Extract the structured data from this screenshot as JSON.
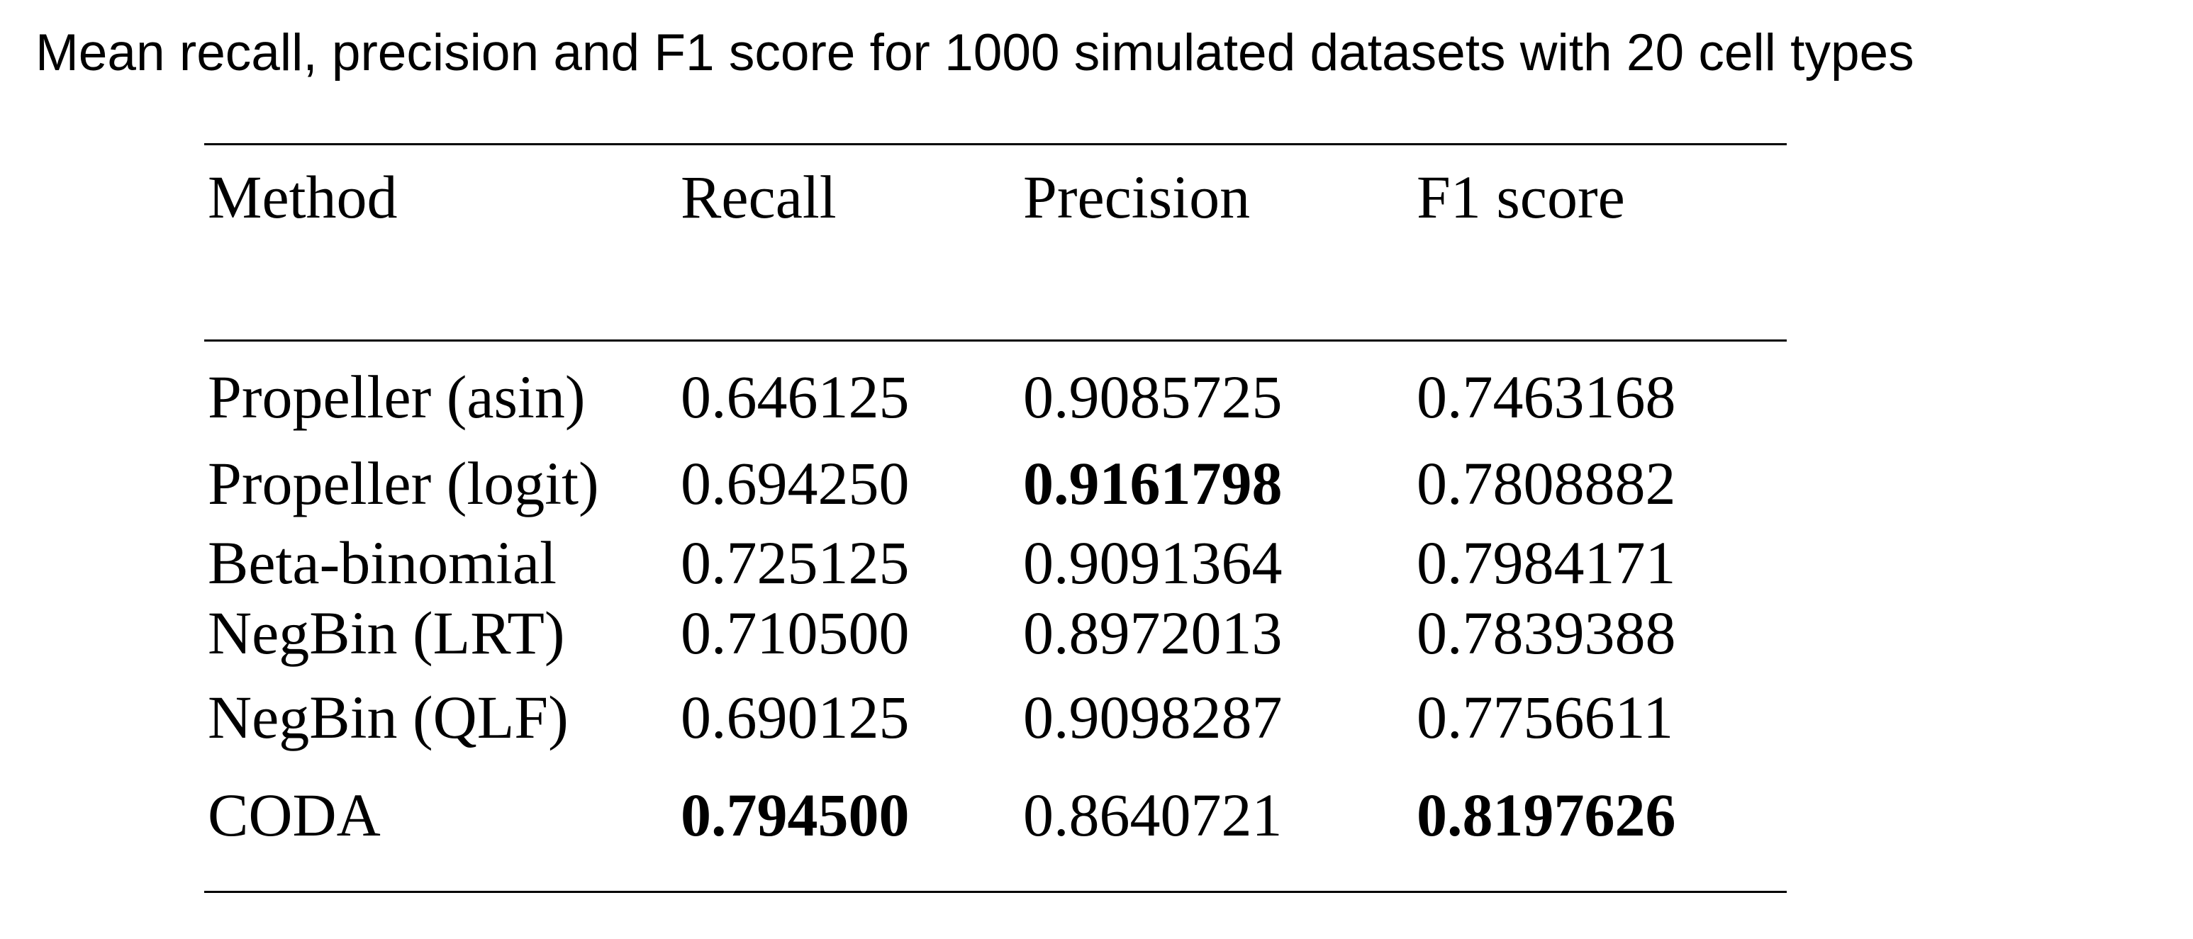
{
  "title": "Mean recall, precision and F1 score for 1000 simulated datasets with 20 cell types",
  "table": {
    "headers": [
      "Method",
      "Recall",
      "Precision",
      "F1 score"
    ],
    "rows": [
      {
        "method": "Propeller (asin)",
        "recall": "0.646125",
        "precision": "0.9085725",
        "f1": "0.7463168"
      },
      {
        "method": "Propeller (logit)",
        "recall": "0.694250",
        "precision": "0.9161798",
        "f1": "0.7808882"
      },
      {
        "method": "Beta-binomial",
        "recall": "0.725125",
        "precision": "0.9091364",
        "f1": "0.7984171"
      },
      {
        "method": "NegBin (LRT)",
        "recall": "0.710500",
        "precision": "0.8972013",
        "f1": "0.7839388"
      },
      {
        "method": "NegBin (QLF)",
        "recall": "0.690125",
        "precision": "0.9098287",
        "f1": "0.7756611"
      },
      {
        "method": "CODA",
        "recall": "0.794500",
        "precision": "0.8640721",
        "f1": "0.8197626"
      }
    ],
    "bold_cells": [
      {
        "row": 1,
        "column": "precision"
      },
      {
        "row": 5,
        "column": "recall"
      },
      {
        "row": 5,
        "column": "f1"
      }
    ]
  }
}
